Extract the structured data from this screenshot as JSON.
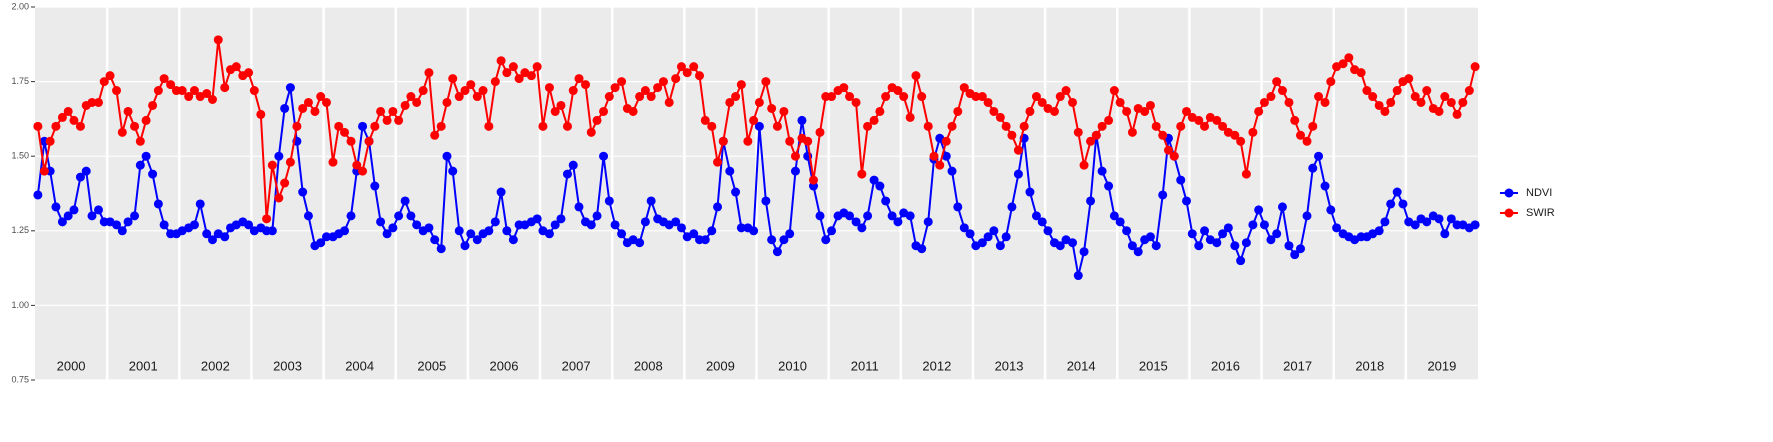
{
  "chart_data": {
    "type": "line",
    "x": [
      2000.04,
      2000.13,
      2000.21,
      2000.29,
      2000.38,
      2000.46,
      2000.54,
      2000.63,
      2000.71,
      2000.79,
      2000.88,
      2000.96,
      2001.04,
      2001.13,
      2001.21,
      2001.29,
      2001.38,
      2001.46,
      2001.54,
      2001.63,
      2001.71,
      2001.79,
      2001.88,
      2001.96,
      2002.04,
      2002.13,
      2002.21,
      2002.29,
      2002.38,
      2002.46,
      2002.54,
      2002.63,
      2002.71,
      2002.79,
      2002.88,
      2002.96,
      2003.04,
      2003.13,
      2003.21,
      2003.29,
      2003.38,
      2003.46,
      2003.54,
      2003.63,
      2003.71,
      2003.79,
      2003.88,
      2003.96,
      2004.04,
      2004.13,
      2004.21,
      2004.29,
      2004.38,
      2004.46,
      2004.54,
      2004.63,
      2004.71,
      2004.79,
      2004.88,
      2004.96,
      2005.04,
      2005.13,
      2005.21,
      2005.29,
      2005.38,
      2005.46,
      2005.54,
      2005.63,
      2005.71,
      2005.79,
      2005.88,
      2005.96,
      2006.04,
      2006.13,
      2006.21,
      2006.29,
      2006.38,
      2006.46,
      2006.54,
      2006.63,
      2006.71,
      2006.79,
      2006.88,
      2006.96,
      2007.04,
      2007.13,
      2007.21,
      2007.29,
      2007.38,
      2007.46,
      2007.54,
      2007.63,
      2007.71,
      2007.79,
      2007.88,
      2007.96,
      2008.04,
      2008.13,
      2008.21,
      2008.29,
      2008.38,
      2008.46,
      2008.54,
      2008.63,
      2008.71,
      2008.79,
      2008.88,
      2008.96,
      2009.04,
      2009.13,
      2009.21,
      2009.29,
      2009.38,
      2009.46,
      2009.54,
      2009.63,
      2009.71,
      2009.79,
      2009.88,
      2009.96,
      2010.04,
      2010.13,
      2010.21,
      2010.29,
      2010.38,
      2010.46,
      2010.54,
      2010.63,
      2010.71,
      2010.79,
      2010.88,
      2010.96,
      2011.04,
      2011.13,
      2011.21,
      2011.29,
      2011.38,
      2011.46,
      2011.54,
      2011.63,
      2011.71,
      2011.79,
      2011.88,
      2011.96,
      2012.04,
      2012.13,
      2012.21,
      2012.29,
      2012.38,
      2012.46,
      2012.54,
      2012.63,
      2012.71,
      2012.79,
      2012.88,
      2012.96,
      2013.04,
      2013.13,
      2013.21,
      2013.29,
      2013.38,
      2013.46,
      2013.54,
      2013.63,
      2013.71,
      2013.79,
      2013.88,
      2013.96,
      2014.04,
      2014.13,
      2014.21,
      2014.29,
      2014.38,
      2014.46,
      2014.54,
      2014.63,
      2014.71,
      2014.79,
      2014.88,
      2014.96,
      2015.04,
      2015.13,
      2015.21,
      2015.29,
      2015.38,
      2015.46,
      2015.54,
      2015.63,
      2015.71,
      2015.79,
      2015.88,
      2015.96,
      2016.04,
      2016.13,
      2016.21,
      2016.29,
      2016.38,
      2016.46,
      2016.54,
      2016.63,
      2016.71,
      2016.79,
      2016.88,
      2016.96,
      2017.04,
      2017.13,
      2017.21,
      2017.29,
      2017.38,
      2017.46,
      2017.54,
      2017.63,
      2017.71,
      2017.79,
      2017.88,
      2017.96,
      2018.04,
      2018.13,
      2018.21,
      2018.29,
      2018.38,
      2018.46,
      2018.54,
      2018.63,
      2018.71,
      2018.79,
      2018.88,
      2018.96,
      2019.04,
      2019.13,
      2019.21,
      2019.29,
      2019.38,
      2019.46,
      2019.54,
      2019.63,
      2019.71,
      2019.79,
      2019.88,
      2019.96
    ],
    "series": [
      {
        "name": "NDVI",
        "color": "#0000ff",
        "values": [
          1.37,
          1.55,
          1.45,
          1.33,
          1.28,
          1.3,
          1.32,
          1.43,
          1.45,
          1.3,
          1.32,
          1.28,
          1.28,
          1.27,
          1.25,
          1.28,
          1.3,
          1.47,
          1.5,
          1.44,
          1.34,
          1.27,
          1.24,
          1.24,
          1.25,
          1.26,
          1.27,
          1.34,
          1.24,
          1.22,
          1.24,
          1.23,
          1.26,
          1.27,
          1.28,
          1.27,
          1.25,
          1.26,
          1.25,
          1.25,
          1.5,
          1.66,
          1.73,
          1.55,
          1.38,
          1.3,
          1.2,
          1.21,
          1.23,
          1.23,
          1.24,
          1.25,
          1.3,
          1.45,
          1.6,
          1.55,
          1.4,
          1.28,
          1.24,
          1.26,
          1.3,
          1.35,
          1.3,
          1.27,
          1.25,
          1.26,
          1.22,
          1.19,
          1.5,
          1.45,
          1.25,
          1.2,
          1.24,
          1.22,
          1.24,
          1.25,
          1.28,
          1.38,
          1.25,
          1.22,
          1.27,
          1.27,
          1.28,
          1.29,
          1.25,
          1.24,
          1.27,
          1.29,
          1.44,
          1.47,
          1.33,
          1.28,
          1.27,
          1.3,
          1.5,
          1.35,
          1.27,
          1.24,
          1.21,
          1.22,
          1.21,
          1.28,
          1.35,
          1.29,
          1.28,
          1.27,
          1.28,
          1.26,
          1.23,
          1.24,
          1.22,
          1.22,
          1.25,
          1.33,
          1.55,
          1.45,
          1.38,
          1.26,
          1.26,
          1.25,
          1.6,
          1.35,
          1.22,
          1.18,
          1.22,
          1.24,
          1.45,
          1.62,
          1.5,
          1.4,
          1.3,
          1.22,
          1.25,
          1.3,
          1.31,
          1.3,
          1.28,
          1.26,
          1.3,
          1.42,
          1.4,
          1.35,
          1.3,
          1.28,
          1.31,
          1.3,
          1.2,
          1.19,
          1.28,
          1.49,
          1.56,
          1.5,
          1.45,
          1.33,
          1.26,
          1.24,
          1.2,
          1.21,
          1.23,
          1.25,
          1.2,
          1.23,
          1.33,
          1.44,
          1.56,
          1.38,
          1.3,
          1.28,
          1.25,
          1.21,
          1.2,
          1.22,
          1.21,
          1.1,
          1.18,
          1.35,
          1.57,
          1.45,
          1.4,
          1.3,
          1.28,
          1.25,
          1.2,
          1.18,
          1.22,
          1.23,
          1.2,
          1.37,
          1.56,
          1.5,
          1.42,
          1.35,
          1.24,
          1.2,
          1.25,
          1.22,
          1.21,
          1.24,
          1.26,
          1.2,
          1.15,
          1.21,
          1.27,
          1.32,
          1.27,
          1.22,
          1.24,
          1.33,
          1.2,
          1.17,
          1.19,
          1.3,
          1.46,
          1.5,
          1.4,
          1.32,
          1.26,
          1.24,
          1.23,
          1.22,
          1.23,
          1.23,
          1.24,
          1.25,
          1.28,
          1.34,
          1.38,
          1.34,
          1.28,
          1.27,
          1.29,
          1.28,
          1.3,
          1.29,
          1.24,
          1.29,
          1.27,
          1.27,
          1.26,
          1.27
        ]
      },
      {
        "name": "SWIR",
        "color": "#ff0000",
        "values": [
          1.6,
          1.45,
          1.55,
          1.6,
          1.63,
          1.65,
          1.62,
          1.6,
          1.67,
          1.68,
          1.68,
          1.75,
          1.77,
          1.72,
          1.58,
          1.65,
          1.6,
          1.55,
          1.62,
          1.67,
          1.72,
          1.76,
          1.74,
          1.72,
          1.72,
          1.7,
          1.72,
          1.7,
          1.71,
          1.69,
          1.89,
          1.73,
          1.79,
          1.8,
          1.77,
          1.78,
          1.72,
          1.64,
          1.29,
          1.47,
          1.36,
          1.41,
          1.48,
          1.6,
          1.66,
          1.68,
          1.65,
          1.7,
          1.68,
          1.48,
          1.6,
          1.58,
          1.55,
          1.47,
          1.45,
          1.55,
          1.6,
          1.65,
          1.62,
          1.65,
          1.62,
          1.67,
          1.7,
          1.68,
          1.72,
          1.78,
          1.57,
          1.6,
          1.68,
          1.76,
          1.7,
          1.72,
          1.74,
          1.7,
          1.72,
          1.6,
          1.75,
          1.82,
          1.78,
          1.8,
          1.76,
          1.78,
          1.77,
          1.8,
          1.6,
          1.73,
          1.65,
          1.67,
          1.6,
          1.72,
          1.76,
          1.74,
          1.58,
          1.62,
          1.65,
          1.7,
          1.73,
          1.75,
          1.66,
          1.65,
          1.7,
          1.72,
          1.7,
          1.73,
          1.75,
          1.68,
          1.76,
          1.8,
          1.78,
          1.8,
          1.77,
          1.62,
          1.6,
          1.48,
          1.55,
          1.68,
          1.7,
          1.74,
          1.55,
          1.62,
          1.68,
          1.75,
          1.66,
          1.6,
          1.65,
          1.55,
          1.5,
          1.56,
          1.55,
          1.42,
          1.58,
          1.7,
          1.7,
          1.72,
          1.73,
          1.7,
          1.68,
          1.44,
          1.6,
          1.62,
          1.65,
          1.7,
          1.73,
          1.72,
          1.7,
          1.63,
          1.77,
          1.7,
          1.6,
          1.5,
          1.47,
          1.55,
          1.6,
          1.65,
          1.73,
          1.71,
          1.7,
          1.7,
          1.68,
          1.65,
          1.63,
          1.6,
          1.57,
          1.52,
          1.6,
          1.65,
          1.7,
          1.68,
          1.66,
          1.65,
          1.7,
          1.72,
          1.68,
          1.58,
          1.47,
          1.55,
          1.57,
          1.6,
          1.62,
          1.72,
          1.68,
          1.65,
          1.58,
          1.66,
          1.65,
          1.67,
          1.6,
          1.57,
          1.52,
          1.5,
          1.6,
          1.65,
          1.63,
          1.62,
          1.6,
          1.63,
          1.62,
          1.6,
          1.58,
          1.57,
          1.55,
          1.44,
          1.58,
          1.65,
          1.68,
          1.7,
          1.75,
          1.72,
          1.68,
          1.62,
          1.57,
          1.55,
          1.6,
          1.7,
          1.68,
          1.75,
          1.8,
          1.81,
          1.83,
          1.79,
          1.78,
          1.72,
          1.7,
          1.67,
          1.65,
          1.68,
          1.72,
          1.75,
          1.76,
          1.7,
          1.68,
          1.72,
          1.66,
          1.65,
          1.7,
          1.68,
          1.64,
          1.68,
          1.72,
          1.8
        ]
      }
    ],
    "xlim": [
      2000,
      2020
    ],
    "xticks": [
      {
        "value": 2000.5,
        "label": "2000"
      },
      {
        "value": 2001.5,
        "label": "2001"
      },
      {
        "value": 2002.5,
        "label": "2002"
      },
      {
        "value": 2003.5,
        "label": "2003"
      },
      {
        "value": 2004.5,
        "label": "2004"
      },
      {
        "value": 2005.5,
        "label": "2005"
      },
      {
        "value": 2006.5,
        "label": "2006"
      },
      {
        "value": 2007.5,
        "label": "2007"
      },
      {
        "value": 2008.5,
        "label": "2008"
      },
      {
        "value": 2009.5,
        "label": "2009"
      },
      {
        "value": 2010.5,
        "label": "2010"
      },
      {
        "value": 2011.5,
        "label": "2011"
      },
      {
        "value": 2012.5,
        "label": "2012"
      },
      {
        "value": 2013.5,
        "label": "2013"
      },
      {
        "value": 2014.5,
        "label": "2014"
      },
      {
        "value": 2015.5,
        "label": "2015"
      },
      {
        "value": 2016.5,
        "label": "2016"
      },
      {
        "value": 2017.5,
        "label": "2017"
      },
      {
        "value": 2018.5,
        "label": "2018"
      },
      {
        "value": 2019.5,
        "label": "2019"
      }
    ],
    "ylim": [
      0.75,
      2.0
    ],
    "yticks": [
      {
        "value": 0.75,
        "label": "0.75"
      },
      {
        "value": 1.0,
        "label": "1.00"
      },
      {
        "value": 1.25,
        "label": "1.25"
      },
      {
        "value": 1.5,
        "label": "1.50"
      },
      {
        "value": 1.75,
        "label": "1.75"
      },
      {
        "value": 2.0,
        "label": "2.00"
      }
    ],
    "grid": true,
    "legend": "right"
  }
}
